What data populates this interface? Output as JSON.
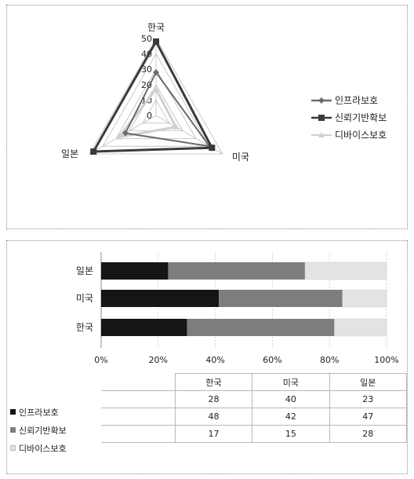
{
  "chart_data": [
    {
      "type": "radar",
      "categories": [
        "한국",
        "미국",
        "일본"
      ],
      "series": [
        {
          "name": "인프라보호",
          "values": [
            28,
            40,
            23
          ]
        },
        {
          "name": "신뢰기반확보",
          "values": [
            48,
            42,
            47
          ]
        },
        {
          "name": "디바이스보호",
          "values": [
            17,
            15,
            28
          ]
        }
      ],
      "ticks": [
        0,
        10,
        20,
        30,
        40,
        50
      ],
      "rmax": 50,
      "legend": "right",
      "colors": [
        "#6b6b6b",
        "#3a3a3a",
        "#cfcfcf"
      ]
    },
    {
      "type": "stacked-bar-100",
      "categories": [
        "일본",
        "미국",
        "한국"
      ],
      "series": [
        {
          "name": "인프라보호",
          "values": [
            23,
            40,
            28
          ]
        },
        {
          "name": "신뢰기반확보",
          "values": [
            47,
            42,
            48
          ]
        },
        {
          "name": "디바이스보호",
          "values": [
            28,
            15,
            17
          ]
        }
      ],
      "xticks": [
        "0%",
        "20%",
        "40%",
        "60%",
        "80%",
        "100%"
      ],
      "colors": [
        "#151515",
        "#7d7d7d",
        "#e3e3e3"
      ],
      "table": {
        "columns": [
          "한국",
          "미국",
          "일본"
        ],
        "rows": [
          {
            "label": "인프라보호",
            "values": [
              "28",
              "40",
              "23"
            ]
          },
          {
            "label": "신뢰기반확보",
            "values": [
              "48",
              "42",
              "47"
            ]
          },
          {
            "label": "디바이스보호",
            "values": [
              "17",
              "15",
              "28"
            ]
          }
        ]
      }
    }
  ]
}
